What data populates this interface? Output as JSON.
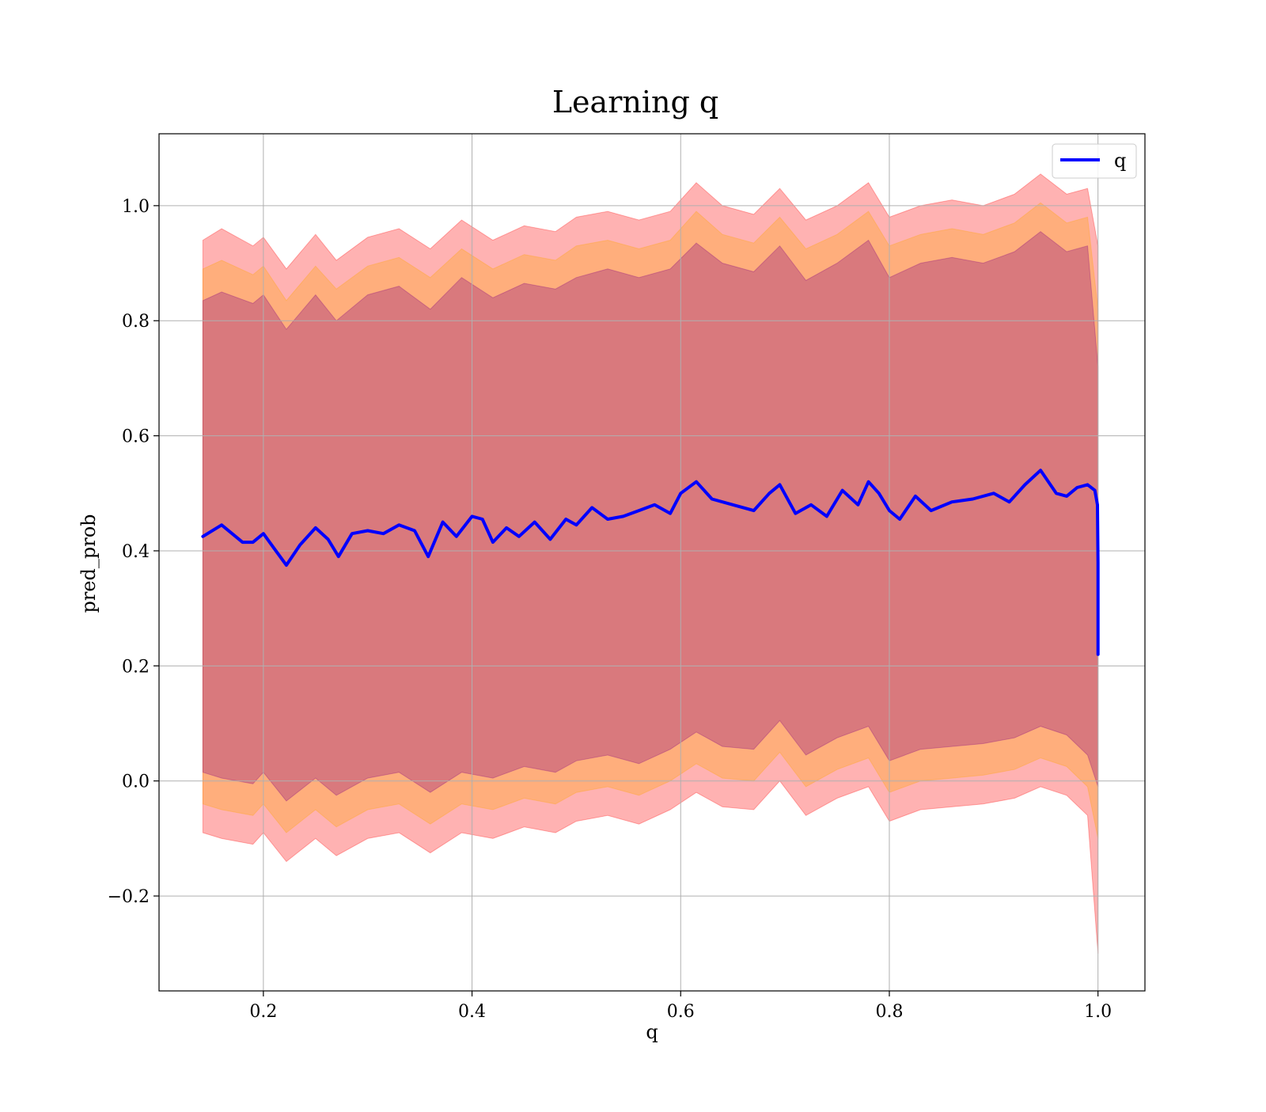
{
  "chart_data": {
    "type": "line",
    "title": "Learning q",
    "xlabel": "q",
    "ylabel": "pred_prob",
    "xlim": [
      0.1,
      1.045
    ],
    "ylim": [
      -0.365,
      1.125
    ],
    "x_ticks": [
      0.2,
      0.4,
      0.6,
      0.8,
      1.0
    ],
    "x_tick_labels": [
      "0.2",
      "0.4",
      "0.6",
      "0.8",
      "1.0"
    ],
    "y_ticks": [
      -0.2,
      0.0,
      0.2,
      0.4,
      0.6,
      0.8,
      1.0
    ],
    "y_tick_labels": [
      "−0.2",
      "0.0",
      "0.2",
      "0.4",
      "0.6",
      "0.8",
      "1.0"
    ],
    "grid": true,
    "legend": {
      "placement": "top-right",
      "entries": [
        "q"
      ]
    },
    "series": [
      {
        "name": "q",
        "color": "#0000ff",
        "x": [
          0.142,
          0.16,
          0.17,
          0.18,
          0.19,
          0.2,
          0.21,
          0.222,
          0.235,
          0.25,
          0.262,
          0.272,
          0.285,
          0.3,
          0.315,
          0.33,
          0.345,
          0.358,
          0.372,
          0.385,
          0.4,
          0.41,
          0.42,
          0.433,
          0.445,
          0.46,
          0.475,
          0.49,
          0.5,
          0.515,
          0.53,
          0.545,
          0.56,
          0.575,
          0.59,
          0.6,
          0.615,
          0.63,
          0.65,
          0.67,
          0.685,
          0.695,
          0.71,
          0.725,
          0.74,
          0.755,
          0.77,
          0.78,
          0.79,
          0.8,
          0.81,
          0.825,
          0.84,
          0.86,
          0.88,
          0.9,
          0.915,
          0.93,
          0.945,
          0.96,
          0.97,
          0.98,
          0.99,
          0.997,
          0.9995,
          1.0,
          1.0
        ],
        "y": [
          0.425,
          0.445,
          0.43,
          0.415,
          0.415,
          0.43,
          0.405,
          0.375,
          0.41,
          0.44,
          0.42,
          0.39,
          0.43,
          0.435,
          0.43,
          0.445,
          0.435,
          0.39,
          0.45,
          0.425,
          0.46,
          0.455,
          0.415,
          0.44,
          0.425,
          0.45,
          0.42,
          0.455,
          0.445,
          0.475,
          0.455,
          0.46,
          0.47,
          0.48,
          0.465,
          0.5,
          0.52,
          0.49,
          0.48,
          0.47,
          0.5,
          0.515,
          0.465,
          0.48,
          0.46,
          0.505,
          0.48,
          0.52,
          0.5,
          0.47,
          0.455,
          0.495,
          0.47,
          0.485,
          0.49,
          0.5,
          0.485,
          0.515,
          0.54,
          0.5,
          0.495,
          0.51,
          0.515,
          0.505,
          0.48,
          0.38,
          0.22
        ]
      }
    ],
    "bands": [
      {
        "color": "#ff0000",
        "alpha": 0.3,
        "x": [
          0.142,
          0.16,
          0.19,
          0.2,
          0.222,
          0.25,
          0.27,
          0.3,
          0.33,
          0.36,
          0.39,
          0.42,
          0.45,
          0.48,
          0.5,
          0.53,
          0.56,
          0.59,
          0.615,
          0.64,
          0.67,
          0.695,
          0.72,
          0.75,
          0.78,
          0.8,
          0.83,
          0.86,
          0.89,
          0.92,
          0.945,
          0.97,
          0.99,
          1.0
        ],
        "upper": [
          0.94,
          0.96,
          0.93,
          0.945,
          0.89,
          0.95,
          0.905,
          0.945,
          0.96,
          0.925,
          0.975,
          0.94,
          0.965,
          0.955,
          0.98,
          0.99,
          0.975,
          0.99,
          1.04,
          1.0,
          0.985,
          1.03,
          0.975,
          1.0,
          1.04,
          0.98,
          1.0,
          1.01,
          1.0,
          1.02,
          1.055,
          1.02,
          1.03,
          0.93
        ],
        "lower": [
          -0.09,
          -0.1,
          -0.11,
          -0.09,
          -0.14,
          -0.1,
          -0.13,
          -0.1,
          -0.09,
          -0.125,
          -0.09,
          -0.1,
          -0.08,
          -0.09,
          -0.07,
          -0.06,
          -0.075,
          -0.05,
          -0.02,
          -0.045,
          -0.05,
          0.0,
          -0.06,
          -0.03,
          -0.01,
          -0.07,
          -0.05,
          -0.045,
          -0.04,
          -0.03,
          -0.01,
          -0.025,
          -0.06,
          -0.3
        ]
      },
      {
        "color": "#ffa500",
        "alpha": 0.3,
        "x": [
          0.142,
          0.16,
          0.19,
          0.2,
          0.222,
          0.25,
          0.27,
          0.3,
          0.33,
          0.36,
          0.39,
          0.42,
          0.45,
          0.48,
          0.5,
          0.53,
          0.56,
          0.59,
          0.615,
          0.64,
          0.67,
          0.695,
          0.72,
          0.75,
          0.78,
          0.8,
          0.83,
          0.86,
          0.89,
          0.92,
          0.945,
          0.97,
          0.99,
          1.0
        ],
        "upper": [
          0.89,
          0.905,
          0.88,
          0.895,
          0.835,
          0.895,
          0.855,
          0.895,
          0.91,
          0.875,
          0.925,
          0.89,
          0.915,
          0.905,
          0.93,
          0.94,
          0.925,
          0.94,
          0.99,
          0.95,
          0.935,
          0.98,
          0.925,
          0.95,
          0.99,
          0.93,
          0.95,
          0.96,
          0.95,
          0.97,
          1.005,
          0.97,
          0.98,
          0.82
        ],
        "lower": [
          -0.04,
          -0.05,
          -0.06,
          -0.04,
          -0.09,
          -0.05,
          -0.08,
          -0.05,
          -0.04,
          -0.075,
          -0.04,
          -0.05,
          -0.03,
          -0.04,
          -0.02,
          -0.01,
          -0.025,
          0.0,
          0.03,
          0.005,
          0.0,
          0.05,
          -0.01,
          0.02,
          0.04,
          -0.02,
          0.0,
          0.005,
          0.01,
          0.02,
          0.04,
          0.025,
          -0.01,
          -0.1
        ]
      },
      {
        "color": "#800080",
        "alpha": 0.3,
        "x": [
          0.142,
          0.16,
          0.19,
          0.2,
          0.222,
          0.25,
          0.27,
          0.3,
          0.33,
          0.36,
          0.39,
          0.42,
          0.45,
          0.48,
          0.5,
          0.53,
          0.56,
          0.59,
          0.615,
          0.64,
          0.67,
          0.695,
          0.72,
          0.75,
          0.78,
          0.8,
          0.83,
          0.86,
          0.89,
          0.92,
          0.945,
          0.97,
          0.99,
          1.0
        ],
        "upper": [
          0.835,
          0.85,
          0.83,
          0.845,
          0.785,
          0.845,
          0.8,
          0.845,
          0.86,
          0.82,
          0.875,
          0.84,
          0.865,
          0.855,
          0.875,
          0.89,
          0.875,
          0.89,
          0.935,
          0.9,
          0.885,
          0.93,
          0.87,
          0.9,
          0.94,
          0.875,
          0.9,
          0.91,
          0.9,
          0.92,
          0.955,
          0.92,
          0.93,
          0.72
        ],
        "lower": [
          0.015,
          0.005,
          -0.005,
          0.015,
          -0.035,
          0.005,
          -0.025,
          0.005,
          0.015,
          -0.02,
          0.015,
          0.005,
          0.025,
          0.015,
          0.035,
          0.045,
          0.03,
          0.055,
          0.085,
          0.06,
          0.055,
          0.105,
          0.045,
          0.075,
          0.095,
          0.035,
          0.055,
          0.06,
          0.065,
          0.075,
          0.095,
          0.08,
          0.045,
          -0.01
        ]
      }
    ]
  }
}
